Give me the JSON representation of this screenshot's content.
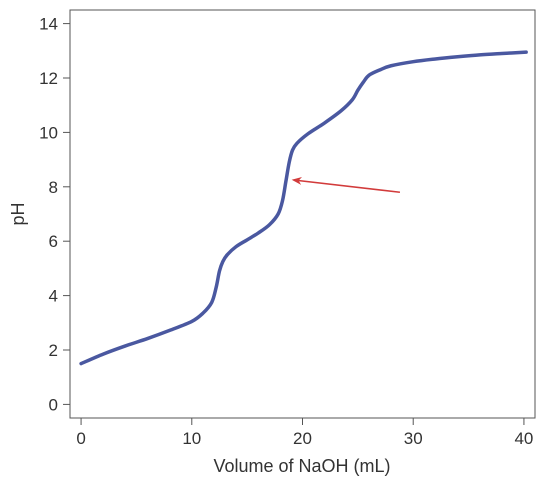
{
  "chart_data": {
    "type": "line",
    "title": "",
    "xlabel": "Volume of NaOH (mL)",
    "ylabel": "pH",
    "xlim": [
      -1,
      41
    ],
    "ylim": [
      -0.5,
      14.5
    ],
    "xticks": [
      0,
      10,
      20,
      30,
      40
    ],
    "yticks": [
      0,
      2,
      4,
      6,
      8,
      10,
      12,
      14
    ],
    "xtick_labels": [
      "0",
      "10",
      "20",
      "30",
      "40"
    ],
    "ytick_labels": [
      "0",
      "2",
      "4",
      "6",
      "8",
      "10",
      "12",
      "14"
    ],
    "grid": false,
    "legend": "none",
    "series": [
      {
        "color": "#4a58a0",
        "x": [
          0,
          2,
          4,
          6,
          8,
          10,
          11,
          11.8,
          12.2,
          12.5,
          12.8,
          13.2,
          14,
          15,
          16,
          17,
          17.8,
          18.2,
          18.5,
          18.8,
          19.1,
          19.5,
          20.5,
          22,
          23.5,
          24.5,
          25,
          25.5,
          26,
          27,
          28,
          30,
          32,
          34,
          36,
          38,
          40.2
        ],
        "y": [
          1.5,
          1.85,
          2.15,
          2.42,
          2.72,
          3.05,
          3.35,
          3.75,
          4.3,
          4.9,
          5.25,
          5.5,
          5.8,
          6.05,
          6.3,
          6.6,
          7.0,
          7.5,
          8.2,
          8.9,
          9.35,
          9.6,
          9.95,
          10.35,
          10.8,
          11.2,
          11.55,
          11.85,
          12.1,
          12.3,
          12.45,
          12.6,
          12.7,
          12.78,
          12.85,
          12.9,
          12.95
        ]
      }
    ],
    "annotations": [
      {
        "type": "arrow",
        "color": "#d23b3b",
        "from": [
          28.8,
          7.8
        ],
        "to": [
          19.2,
          8.25
        ]
      }
    ]
  }
}
